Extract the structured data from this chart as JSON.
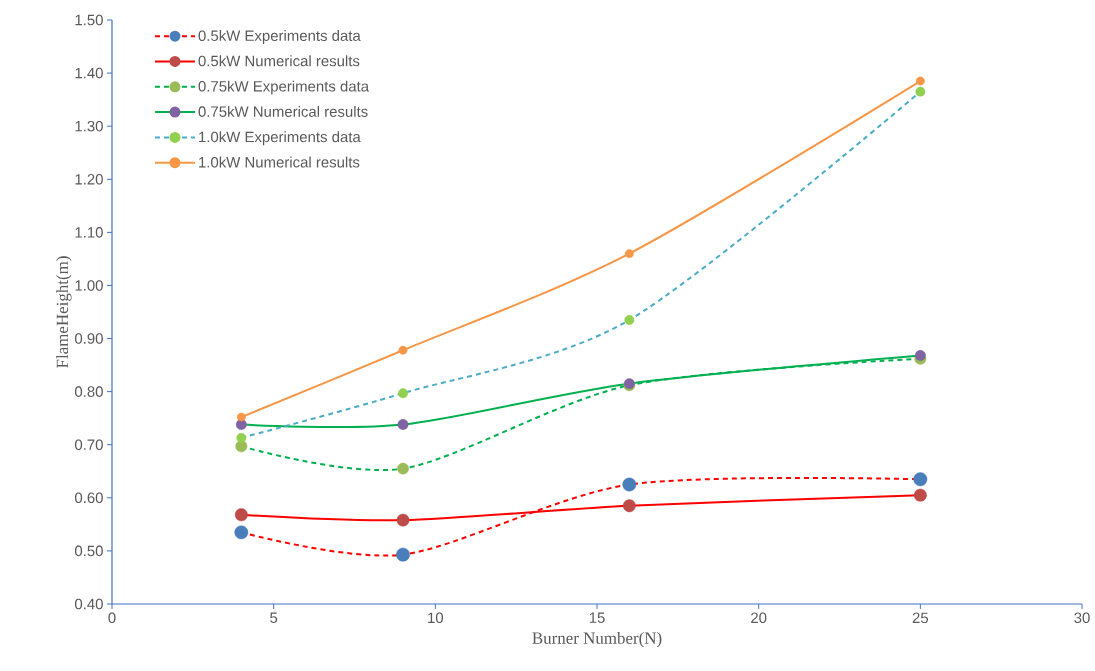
{
  "chart_data": {
    "type": "line",
    "xlabel": "Burner Number(N)",
    "ylabel": "FlameHeight(m)",
    "x": [
      4,
      9,
      16,
      25
    ],
    "xlim": [
      0,
      30
    ],
    "xticks": [
      0,
      5,
      10,
      15,
      20,
      25,
      30
    ],
    "ylim": [
      0.4,
      1.5
    ],
    "yticks": [
      {
        "value": 0.4,
        "label": "0.40"
      },
      {
        "value": 0.5,
        "label": "0.50"
      },
      {
        "value": 0.6,
        "label": "0.60"
      },
      {
        "value": 0.7,
        "label": "0.70"
      },
      {
        "value": 0.8,
        "label": "0.80"
      },
      {
        "value": 0.9,
        "label": "0.90"
      },
      {
        "value": 1.0,
        "label": "1.00"
      },
      {
        "value": 1.1,
        "label": "1.10"
      },
      {
        "value": 1.2,
        "label": "1.20"
      },
      {
        "value": 1.3,
        "label": "1.30"
      },
      {
        "value": 1.4,
        "label": "1.40"
      },
      {
        "value": 1.5,
        "label": "1.50"
      }
    ],
    "grid": false,
    "legend": "top left",
    "marker": "circle",
    "series": [
      {
        "name": "0.5kW Experiments data",
        "color": "#ff0000",
        "line_style": "dashed",
        "colors": [
          "#4a7ebb",
          "#4a7ebb",
          "#4a7ebb",
          "#4a7ebb"
        ],
        "values": [
          0.535,
          0.493,
          0.625,
          0.635
        ]
      },
      {
        "name": "0.5kW Numerical results",
        "color": "#ff0000",
        "line_style": "solid",
        "colors": [
          "#be4b48",
          "#be4b48",
          "#be4b48",
          "#be4b48"
        ],
        "values": [
          0.568,
          0.558,
          0.585,
          0.605
        ]
      },
      {
        "name": "0.75kW Experiments data",
        "color": "#00b050",
        "line_style": "dashed",
        "colors": [
          "#9bbb59",
          "#9bbb59",
          "#9bbb59",
          "#9bbb59"
        ],
        "values": [
          0.697,
          0.655,
          0.812,
          0.862
        ]
      },
      {
        "name": "0.75kW Numerical results",
        "color": "#00b050",
        "line_style": "solid",
        "colors": [
          "#7f63a2",
          "#7f63a2",
          "#7f63a2",
          "#7f63a2"
        ],
        "values": [
          0.738,
          0.738,
          0.815,
          0.868
        ]
      },
      {
        "name": "1.0kW Experiments data",
        "color": "#4bacc6",
        "line_style": "dashed",
        "colors": [
          "#92d050",
          "#92d050",
          "#92d050",
          "#92d050"
        ],
        "values": [
          0.713,
          0.797,
          0.935,
          1.365
        ]
      },
      {
        "name": "1.0kW Numerical results",
        "color": "#f79646",
        "line_style": "solid",
        "colors": [
          "#f79646",
          "#f79646",
          "#f79646",
          "#f79646"
        ],
        "values": [
          0.752,
          0.878,
          1.06,
          1.385
        ]
      }
    ]
  }
}
